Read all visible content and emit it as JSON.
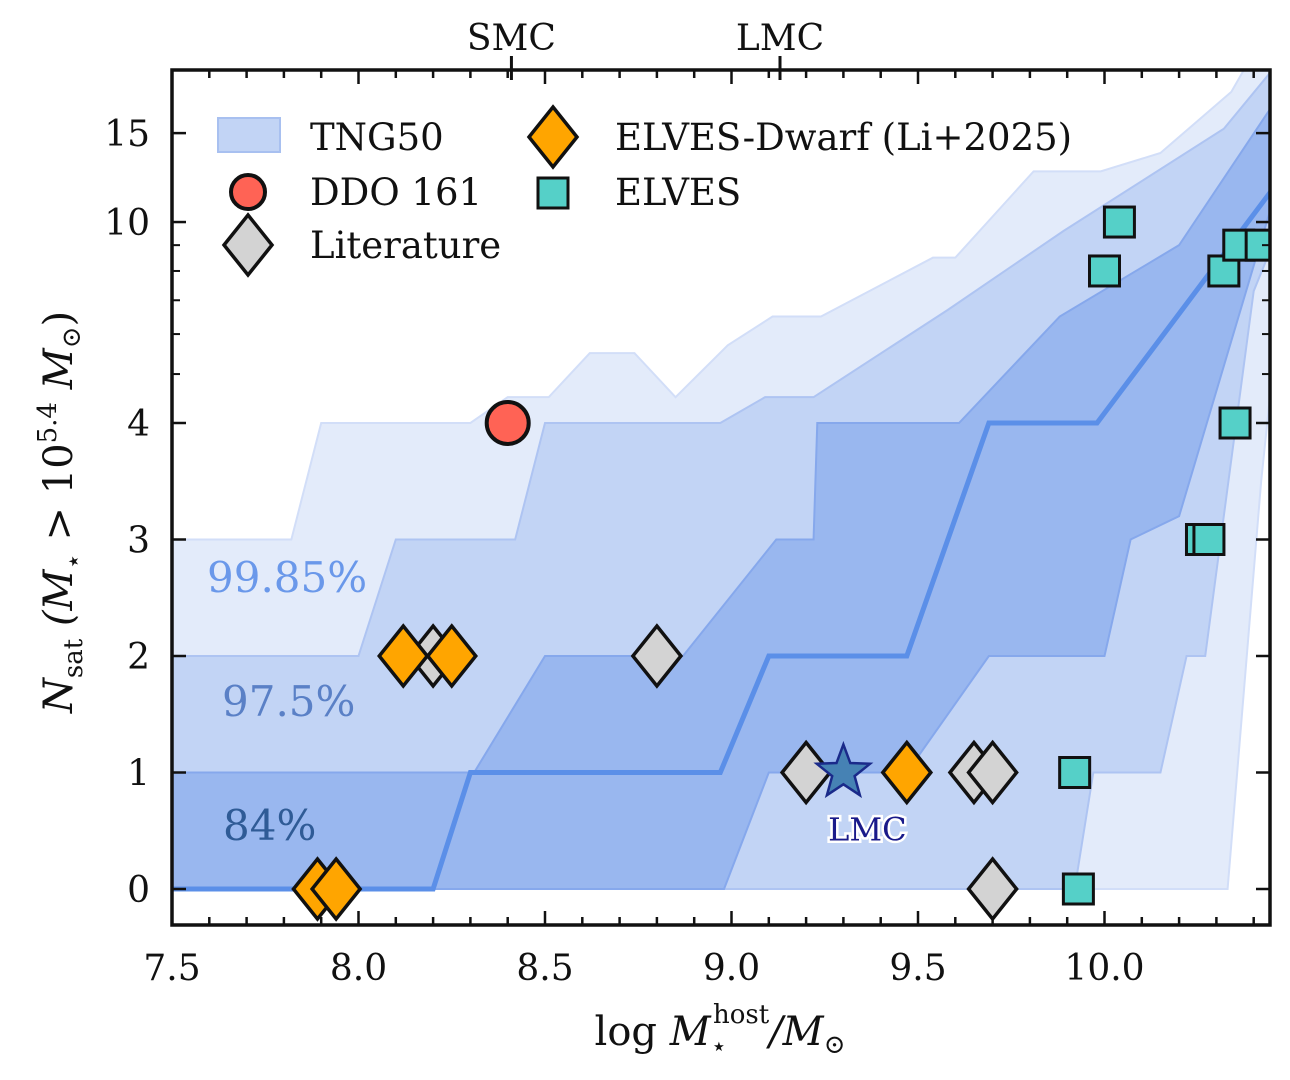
{
  "chart_data": {
    "type": "scatter",
    "xlabel": {
      "prefix": "log ",
      "main": "M",
      "sub": "⋆",
      "sup": "host",
      "rest": "/M",
      "rest_sub": "⊙"
    },
    "ylabel": {
      "main": "N",
      "sub": "sat",
      "open": " (M",
      "star": "⋆",
      "gt": " > 10",
      "exp": "5.4",
      "msun": " M",
      "msun_sub": "⊙",
      "close": ")"
    },
    "xlim": [
      7.5,
      10.45
    ],
    "ylim": [
      -0.3,
      20
    ],
    "yscale": "linear below 4, logarithmic above 4",
    "x_ticks": [
      7.5,
      8.0,
      8.5,
      9.0,
      9.5,
      10.0
    ],
    "x_tick_labels": [
      "7.5",
      "8.0",
      "8.5",
      "9.0",
      "9.5",
      "10.0"
    ],
    "y_ticks": [
      0,
      1,
      2,
      3,
      4,
      10,
      15
    ],
    "y_tick_labels": [
      "0",
      "1",
      "2",
      "3",
      "4",
      "10",
      "15"
    ],
    "top_axis": {
      "ticks": [
        8.41,
        9.13
      ],
      "labels": [
        "SMC",
        "LMC"
      ]
    },
    "legend": {
      "placement": "top-left",
      "entries": [
        "TNG50",
        "DDO 161",
        "Literature",
        "ELVES-Dwarf (Li+2025)",
        "ELVES"
      ]
    },
    "colors": {
      "band_99_85": "#e3ebfa",
      "band_97_5": "#c2d4f5",
      "band_84": "#99b7ef",
      "median": "#5b8fe8",
      "ddo161": "#ff6355",
      "literature": "#d3d3d3",
      "elves_dwarf": "#ffa500",
      "elves": "#55d0c8",
      "lmc_star": "#4682b4"
    },
    "bands": [
      {
        "name": "99.85%",
        "label_color": "#6a98ea",
        "upper": [
          [
            7.5,
            3
          ],
          [
            7.82,
            3
          ],
          [
            7.9,
            4
          ],
          [
            8.3,
            4
          ],
          [
            8.4,
            4.5
          ],
          [
            8.51,
            4.5
          ],
          [
            8.62,
            5.5
          ],
          [
            8.74,
            5.5
          ],
          [
            8.85,
            4.5
          ],
          [
            8.99,
            5.7
          ],
          [
            9.11,
            6.5
          ],
          [
            9.24,
            6.5
          ],
          [
            9.54,
            8.5
          ],
          [
            9.6,
            8.5
          ],
          [
            9.81,
            12.6
          ],
          [
            9.99,
            12.6
          ],
          [
            10.15,
            13.7
          ],
          [
            10.34,
            18.1
          ],
          [
            10.39,
            21
          ],
          [
            10.45,
            21
          ]
        ],
        "lower": [
          [
            7.5,
            0
          ],
          [
            10.33,
            0
          ],
          [
            10.42,
            3.5
          ],
          [
            10.45,
            5
          ]
        ]
      },
      {
        "name": "97.5%",
        "label_color": "#5a80c6",
        "upper": [
          [
            7.5,
            2
          ],
          [
            8.0,
            2
          ],
          [
            8.1,
            3
          ],
          [
            8.42,
            3
          ],
          [
            8.5,
            4
          ],
          [
            8.97,
            4
          ],
          [
            9.09,
            4.5
          ],
          [
            9.22,
            4.5
          ],
          [
            9.58,
            6.7
          ],
          [
            9.89,
            9.6
          ],
          [
            10.32,
            15.3
          ],
          [
            10.45,
            20
          ]
        ],
        "lower": [
          [
            7.5,
            0
          ],
          [
            9.92,
            0
          ],
          [
            9.97,
            1
          ],
          [
            10.15,
            1
          ],
          [
            10.22,
            2
          ],
          [
            10.27,
            2
          ],
          [
            10.4,
            7.3
          ],
          [
            10.45,
            9
          ]
        ]
      },
      {
        "name": "84%",
        "label_color": "#2f5b96",
        "upper": [
          [
            7.5,
            1
          ],
          [
            8.31,
            1
          ],
          [
            8.5,
            2
          ],
          [
            8.87,
            2
          ],
          [
            9.12,
            3
          ],
          [
            9.22,
            3
          ],
          [
            9.23,
            4
          ],
          [
            9.61,
            4
          ],
          [
            9.88,
            6.5
          ],
          [
            10.2,
            9
          ],
          [
            10.45,
            17
          ]
        ],
        "lower": [
          [
            7.5,
            0
          ],
          [
            8.98,
            0
          ],
          [
            9.1,
            1
          ],
          [
            9.47,
            1
          ],
          [
            9.69,
            2
          ],
          [
            10.0,
            2
          ],
          [
            10.07,
            3
          ],
          [
            10.2,
            3.2
          ],
          [
            10.45,
            10.9
          ]
        ]
      }
    ],
    "median": [
      [
        7.5,
        0
      ],
      [
        8.2,
        0
      ],
      [
        8.3,
        1
      ],
      [
        8.97,
        1
      ],
      [
        9.1,
        2
      ],
      [
        9.47,
        2
      ],
      [
        9.69,
        4
      ],
      [
        9.98,
        4
      ],
      [
        10.45,
        11.6
      ]
    ],
    "series": [
      {
        "name": "DDO 161",
        "marker": "circle",
        "points": [
          [
            8.4,
            4
          ]
        ]
      },
      {
        "name": "Literature",
        "marker": "diamond",
        "points": [
          [
            8.2,
            2
          ],
          [
            8.8,
            2
          ],
          [
            9.2,
            1
          ],
          [
            9.65,
            1
          ],
          [
            9.7,
            1
          ],
          [
            9.7,
            0
          ]
        ]
      },
      {
        "name": "ELVES-Dwarf (Li+2025)",
        "marker": "diamond",
        "points": [
          [
            7.89,
            0
          ],
          [
            7.94,
            0
          ],
          [
            8.12,
            2
          ],
          [
            8.25,
            2
          ],
          [
            9.47,
            1
          ]
        ]
      },
      {
        "name": "ELVES",
        "marker": "square",
        "points": [
          [
            10.04,
            10
          ],
          [
            10.0,
            8
          ],
          [
            10.32,
            8
          ],
          [
            10.36,
            9
          ],
          [
            10.42,
            9
          ],
          [
            10.35,
            4
          ],
          [
            10.26,
            3
          ],
          [
            10.28,
            3
          ],
          [
            9.92,
            1
          ],
          [
            9.93,
            0
          ]
        ]
      }
    ],
    "annotations": [
      {
        "text": "LMC",
        "x": 9.3,
        "y": 1,
        "marker": "star"
      }
    ]
  }
}
